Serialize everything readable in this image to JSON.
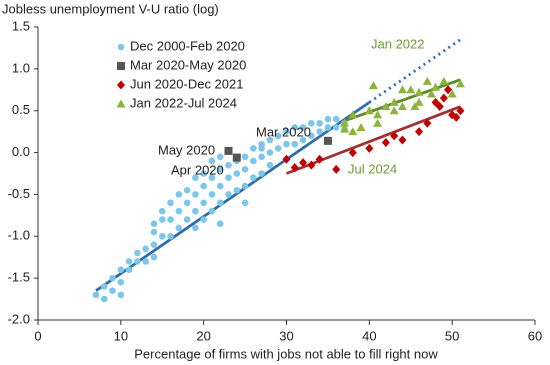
{
  "chart_data": {
    "type": "scatter",
    "title": "Jobless unemployment V-U ratio (log)",
    "x_label": "Percentage of firms with jobs not able to fill right now",
    "xlim": [
      0,
      60
    ],
    "xticks": [
      0,
      10,
      20,
      30,
      40,
      50,
      60
    ],
    "ylim": [
      -2.0,
      1.5
    ],
    "yticks": [
      {
        "value": -2.0,
        "label": "-2.0"
      },
      -1.5,
      {
        "value": -1.0,
        "label": "-1.0"
      },
      -0.5,
      {
        "value": 0.0,
        "label": "0.0"
      },
      0.5,
      {
        "value": 1.0,
        "label": "1.0"
      },
      1.5
    ],
    "series": [
      {
        "name": "Dec 2000-Feb 2020",
        "color": "#7cc6ea",
        "marker": "circle",
        "x": [
          7,
          8,
          8,
          9,
          9,
          10,
          10,
          10,
          11,
          11,
          12,
          12,
          13,
          13,
          14,
          14,
          14,
          15,
          15,
          16,
          16,
          16,
          17,
          17,
          18,
          18,
          18,
          19,
          19,
          19,
          20,
          20,
          20,
          20,
          21,
          21,
          21,
          21,
          22,
          22,
          22,
          22,
          23,
          23,
          23,
          24,
          24,
          24,
          25,
          25,
          25,
          26,
          26,
          26,
          27,
          27,
          27,
          28,
          28,
          28,
          29,
          29,
          30,
          30,
          31,
          31,
          32,
          32,
          33,
          33,
          34,
          34,
          35,
          35,
          36,
          36,
          37,
          37,
          14,
          15,
          17,
          19,
          22,
          25,
          27
        ],
        "values": [
          -1.7,
          -1.75,
          -1.6,
          -1.65,
          -1.5,
          -1.55,
          -1.4,
          -1.7,
          -1.4,
          -1.3,
          -1.3,
          -1.2,
          -1.15,
          -1.3,
          -1.1,
          -0.85,
          -1.25,
          -1.0,
          -0.8,
          -1.0,
          -0.8,
          -0.6,
          -0.9,
          -0.7,
          -0.8,
          -0.6,
          -0.45,
          -0.7,
          -0.5,
          -0.3,
          -0.6,
          -0.4,
          -0.25,
          -0.8,
          -0.5,
          -0.3,
          -0.1,
          -0.7,
          -0.4,
          -0.2,
          -0.05,
          -0.6,
          -0.3,
          -0.15,
          -0.5,
          -0.25,
          -0.1,
          -0.45,
          -0.2,
          -0.05,
          -0.4,
          -0.1,
          0.05,
          -0.3,
          -0.05,
          0.1,
          -0.25,
          0.0,
          0.15,
          -0.15,
          0.05,
          0.2,
          0.1,
          0.25,
          0.1,
          0.3,
          0.15,
          0.3,
          0.2,
          0.35,
          0.25,
          0.35,
          0.3,
          0.4,
          0.3,
          0.4,
          0.35,
          0.28,
          -0.95,
          -0.7,
          -0.5,
          -0.9,
          -0.85,
          -0.6,
          0.05
        ]
      },
      {
        "name": "Mar 2020-May 2020",
        "color": "#555555",
        "marker": "square",
        "x": [
          23,
          24,
          35
        ],
        "values": [
          0.02,
          -0.06,
          0.14
        ]
      },
      {
        "name": "Jun 2020-Dec 2021",
        "color": "#c00000",
        "marker": "diamond",
        "x": [
          30,
          31,
          32,
          33,
          34,
          36,
          38,
          40,
          42,
          43,
          44,
          46,
          47,
          48,
          48.5,
          49,
          49.5,
          50,
          50.5,
          51
        ],
        "values": [
          -0.08,
          -0.18,
          -0.12,
          -0.15,
          -0.08,
          -0.2,
          0.0,
          0.05,
          0.12,
          0.2,
          0.15,
          0.25,
          0.35,
          0.6,
          0.55,
          0.65,
          0.75,
          0.45,
          0.42,
          0.5
        ]
      },
      {
        "name": "Jan 2022-Jul 2024",
        "color": "#8db33a",
        "marker": "triangle",
        "x": [
          37,
          38,
          39,
          40,
          40.5,
          41,
          42,
          43,
          44,
          45,
          45.5,
          46,
          47,
          47.5,
          48,
          49,
          50,
          51,
          37,
          38,
          41,
          43,
          44,
          46
        ],
        "values": [
          0.35,
          0.45,
          0.3,
          0.5,
          0.8,
          0.45,
          0.55,
          0.6,
          0.75,
          0.75,
          0.55,
          0.72,
          0.85,
          0.7,
          0.78,
          0.85,
          0.7,
          0.82,
          0.28,
          0.25,
          0.35,
          0.5,
          0.55,
          0.6
        ]
      }
    ],
    "fit_lines": [
      {
        "color": "#2f6ea6",
        "dashed": false,
        "x": [
          7,
          40
        ],
        "values": [
          -1.65,
          0.6
        ]
      },
      {
        "color": "#2f6ea6",
        "dashed": true,
        "x": [
          40,
          51
        ],
        "values": [
          0.6,
          1.35
        ]
      },
      {
        "color": "#5f8a2a",
        "dashed": false,
        "x": [
          37,
          51
        ],
        "values": [
          0.38,
          0.87
        ]
      },
      {
        "color": "#a33030",
        "dashed": false,
        "x": [
          30,
          51
        ],
        "values": [
          -0.25,
          0.55
        ]
      }
    ],
    "annotations": [
      {
        "text": "Mar 2020",
        "color": "#222222"
      },
      {
        "text": "May 2020",
        "color": "#222222"
      },
      {
        "text": "Apr 2020",
        "color": "#222222"
      },
      {
        "text": "Jan 2022",
        "color": "#6f9a2e"
      },
      {
        "text": "Jul 2024",
        "color": "#6f9a2e"
      }
    ]
  }
}
